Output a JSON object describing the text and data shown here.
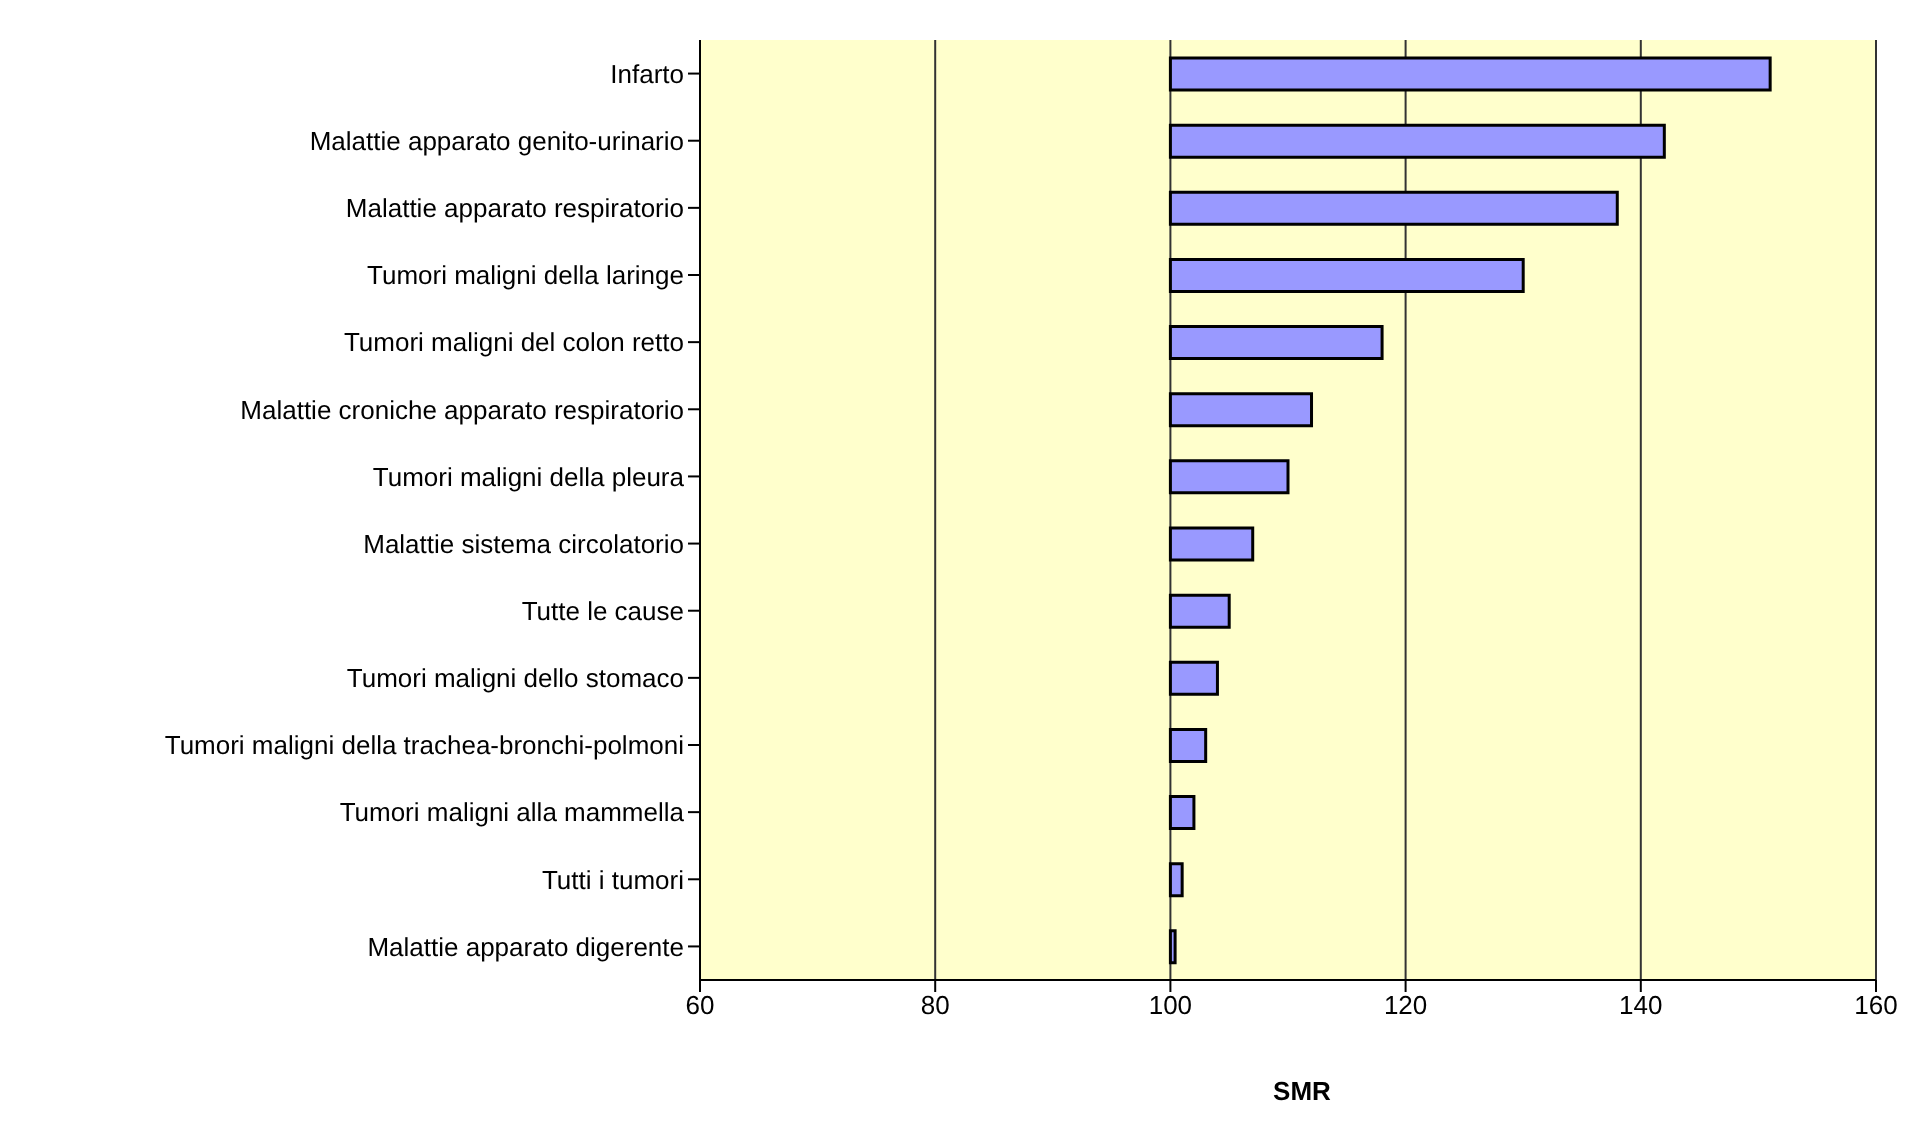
{
  "chart_data": {
    "type": "bar",
    "orientation": "horizontal",
    "xlabel": "SMR",
    "categories": [
      "Infarto",
      "Malattie apparato genito-urinario",
      "Malattie apparato respiratorio",
      "Tumori maligni della laringe",
      "Tumori maligni del colon retto",
      "Malattie croniche apparato respiratorio",
      "Tumori maligni della pleura",
      "Malattie sistema circolatorio",
      "Tutte le cause",
      "Tumori maligni dello stomaco",
      "Tumori maligni della trachea-bronchi-polmoni",
      "Tumori maligni alla mammella",
      "Tutti i tumori",
      "Malattie apparato digerente"
    ],
    "values": [
      51,
      42,
      38,
      30,
      18,
      12,
      10,
      7,
      5,
      4,
      3,
      2,
      1,
      0.4
    ],
    "base": [
      100,
      100,
      100,
      100,
      100,
      100,
      100,
      100,
      100,
      100,
      100,
      100,
      100,
      100
    ],
    "color": "#9999ff",
    "xlim": [
      60,
      160
    ],
    "xticks": [
      60,
      80,
      100,
      120,
      140,
      160
    ],
    "grid": "x"
  }
}
